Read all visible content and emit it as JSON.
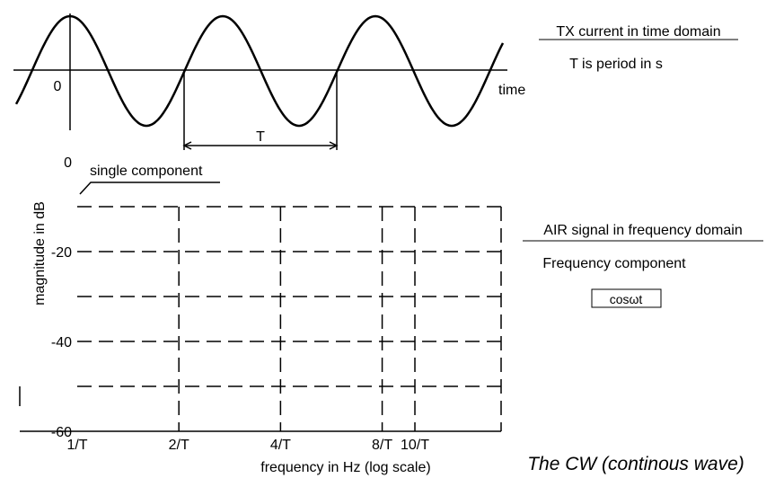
{
  "time_domain": {
    "title": "TX current in time domain",
    "note": "T is period in s",
    "origin_label": "0",
    "axis_label": "time",
    "period_label": "T"
  },
  "chart_data": {
    "type": "bar",
    "ylabel": "magnitude in dB",
    "xlabel": "frequency in Hz  (log scale)",
    "x": [
      1
    ],
    "values": [
      0
    ],
    "color": "#000000",
    "bar_label": "single  component",
    "xlim": [
      1,
      18
    ],
    "xscale": "log",
    "xticks": [
      {
        "value": 1,
        "label": "1/T"
      },
      {
        "value": 2,
        "label": "2/T"
      },
      {
        "value": 4,
        "label": "4/T"
      },
      {
        "value": 8,
        "label": "8/T"
      },
      {
        "value": 10,
        "label": "10/T"
      }
    ],
    "ylim": [
      -60,
      0
    ],
    "yticks": [
      0,
      -20,
      -40,
      -60
    ],
    "minor_yticks": [
      -10,
      -30,
      -50
    ],
    "grid": true
  },
  "side": {
    "title": "AIR signal in frequency domain",
    "subtitle": "Frequency component",
    "formula": "cosωt"
  },
  "caption": "The CW (continous wave)"
}
